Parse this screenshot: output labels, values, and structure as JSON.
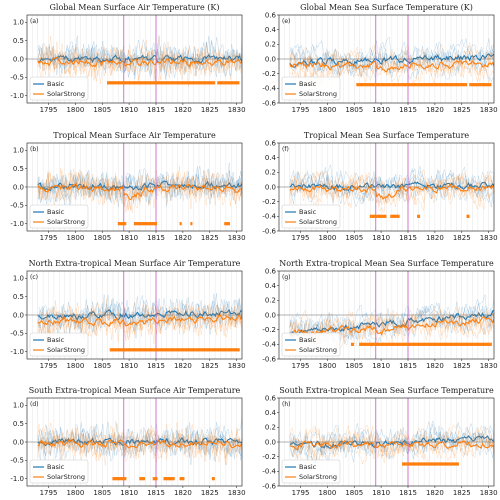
{
  "figure": {
    "colors": {
      "basic": "#1f77b4",
      "solar": "#ff7f0e",
      "event_line": "#cc66cc",
      "zero_line": "#666666",
      "frame": "#333333"
    }
  },
  "chart_data": [
    {
      "type": "line",
      "label": "(a)",
      "title": "Global Mean Surface Air Temperature (K)",
      "xlim": [
        1791,
        1831
      ],
      "ylim": [
        -1.2,
        1.2
      ],
      "yticks": [
        "1.0",
        "0.5",
        "0.0",
        "-0.5",
        "-1.0"
      ],
      "ytick_values": [
        1.0,
        0.5,
        0.0,
        -0.5,
        -1.0
      ],
      "xticks": [
        "1795",
        "1800",
        "1805",
        "1810",
        "1815",
        "1820",
        "1825",
        "1830"
      ],
      "xtick_values": [
        1795,
        1800,
        1805,
        1810,
        1815,
        1820,
        1825,
        1830
      ],
      "event_lines": [
        1809,
        1815
      ],
      "series": [
        {
          "name": "Basic",
          "color": "#1f77b4",
          "mean_start": 0.0,
          "mean_end": 0.0
        },
        {
          "name": "SolarStrong",
          "color": "#ff7f0e",
          "mean_start": -0.08,
          "mean_end": -0.08,
          "dip_at": 1809,
          "dip": -0.06
        }
      ],
      "legend": [
        "Basic",
        "SolarStrong"
      ],
      "legend_loc": "lower-left",
      "significance": {
        "y": -0.65,
        "spans": [
          [
            1806,
            1826
          ],
          [
            1826.5,
            1830.5
          ]
        ]
      }
    },
    {
      "type": "line",
      "label": "(e)",
      "title": "Global Mean Sea Surface Temperature (K)",
      "xlim": [
        1791,
        1831
      ],
      "ylim": [
        -0.6,
        0.6
      ],
      "yticks": [
        "0.6",
        "0.4",
        "0.2",
        "0.0",
        "-0.2",
        "-0.4",
        "-0.6"
      ],
      "ytick_values": [
        0.6,
        0.4,
        0.2,
        0.0,
        -0.2,
        -0.4,
        -0.6
      ],
      "xticks": [
        "1795",
        "1800",
        "1805",
        "1810",
        "1815",
        "1820",
        "1825",
        "1830"
      ],
      "xtick_values": [
        1795,
        1800,
        1805,
        1810,
        1815,
        1820,
        1825,
        1830
      ],
      "event_lines": [
        1809,
        1815
      ],
      "series": [
        {
          "name": "Basic",
          "color": "#1f77b4",
          "mean_start": -0.05,
          "mean_end": 0.03
        },
        {
          "name": "SolarStrong",
          "color": "#ff7f0e",
          "mean_start": -0.1,
          "mean_end": -0.07,
          "dip_at": 1809,
          "dip": -0.04
        }
      ],
      "legend": [
        "Basic",
        "SolarStrong"
      ],
      "legend_loc": "lower-left",
      "significance": {
        "y": -0.35,
        "spans": [
          [
            1805.5,
            1826
          ],
          [
            1826.5,
            1830.5
          ]
        ]
      }
    },
    {
      "type": "line",
      "label": "(b)",
      "title": "Tropical Mean Surface Air Temperature",
      "xlim": [
        1791,
        1831
      ],
      "ylim": [
        -1.2,
        1.2
      ],
      "yticks": [
        "1.0",
        "0.5",
        "0.0",
        "-0.5",
        "-1.0"
      ],
      "ytick_values": [
        1.0,
        0.5,
        0.0,
        -0.5,
        -1.0
      ],
      "xticks": [
        "1795",
        "1800",
        "1805",
        "1810",
        "1815",
        "1820",
        "1825",
        "1830"
      ],
      "xtick_values": [
        1795,
        1800,
        1805,
        1810,
        1815,
        1820,
        1825,
        1830
      ],
      "event_lines": [
        1809,
        1815
      ],
      "series": [
        {
          "name": "Basic",
          "color": "#1f77b4",
          "mean_start": 0.0,
          "mean_end": 0.05
        },
        {
          "name": "SolarStrong",
          "color": "#ff7f0e",
          "mean_start": -0.02,
          "mean_end": -0.05,
          "dip_at": 1809,
          "dip": -0.2
        }
      ],
      "legend": [
        "Basic",
        "SolarStrong"
      ],
      "legend_loc": "lower-left",
      "significance": {
        "y": -1.0,
        "spans": [
          [
            1808,
            1809.5
          ],
          [
            1811,
            1815.2
          ],
          [
            1819.5,
            1819.8
          ],
          [
            1821.5,
            1821.8
          ],
          [
            1827.8,
            1828.8
          ]
        ]
      }
    },
    {
      "type": "line",
      "label": "(f)",
      "title": "Tropical Mean Sea Surface Temperature",
      "xlim": [
        1791,
        1831
      ],
      "ylim": [
        -0.6,
        0.6
      ],
      "yticks": [
        "0.6",
        "0.4",
        "0.2",
        "0.0",
        "-0.2",
        "-0.4",
        "-0.6"
      ],
      "ytick_values": [
        0.6,
        0.4,
        0.2,
        0.0,
        -0.2,
        -0.4,
        -0.6
      ],
      "xticks": [
        "1795",
        "1800",
        "1805",
        "1810",
        "1815",
        "1820",
        "1825",
        "1830"
      ],
      "xtick_values": [
        1795,
        1800,
        1805,
        1810,
        1815,
        1820,
        1825,
        1830
      ],
      "event_lines": [
        1809,
        1815
      ],
      "series": [
        {
          "name": "Basic",
          "color": "#1f77b4",
          "mean_start": 0.0,
          "mean_end": 0.02
        },
        {
          "name": "SolarStrong",
          "color": "#ff7f0e",
          "mean_start": -0.02,
          "mean_end": -0.02,
          "dip_at": 1809,
          "dip": -0.12
        }
      ],
      "legend": [
        "Basic",
        "SolarStrong"
      ],
      "legend_loc": "lower-left",
      "significance": {
        "y": -0.4,
        "spans": [
          [
            1808,
            1811
          ],
          [
            1811.8,
            1813.5
          ],
          [
            1816.8,
            1817.2
          ],
          [
            1826,
            1826.5
          ]
        ]
      }
    },
    {
      "type": "line",
      "label": "(c)",
      "title": "North Extra-tropical Mean Surface Air Temperature",
      "xlim": [
        1791,
        1831
      ],
      "ylim": [
        -1.2,
        1.2
      ],
      "yticks": [
        "1.0",
        "0.5",
        "0.0",
        "-0.5",
        "-1.0"
      ],
      "ytick_values": [
        1.0,
        0.5,
        0.0,
        -0.5,
        -1.0
      ],
      "xticks": [
        "1795",
        "1800",
        "1805",
        "1810",
        "1815",
        "1820",
        "1825",
        "1830"
      ],
      "xtick_values": [
        1795,
        1800,
        1805,
        1810,
        1815,
        1820,
        1825,
        1830
      ],
      "event_lines": [
        1809,
        1815
      ],
      "series": [
        {
          "name": "Basic",
          "color": "#1f77b4",
          "mean_start": -0.05,
          "mean_end": 0.08
        },
        {
          "name": "SolarStrong",
          "color": "#ff7f0e",
          "mean_start": -0.2,
          "mean_end": -0.1,
          "dip_at": 1809,
          "dip": -0.1
        }
      ],
      "legend": [
        "Basic",
        "SolarStrong"
      ],
      "legend_loc": "lower-left",
      "significance": {
        "y": -0.95,
        "spans": [
          [
            1806.5,
            1830.5
          ]
        ]
      }
    },
    {
      "type": "line",
      "label": "(g)",
      "title": "North Extra-tropical Mean Sea Surface Temperature",
      "xlim": [
        1791,
        1831
      ],
      "ylim": [
        -0.6,
        0.6
      ],
      "yticks": [
        "0.6",
        "0.4",
        "0.2",
        "0.0",
        "-0.2",
        "-0.4",
        "-0.6"
      ],
      "ytick_values": [
        0.6,
        0.4,
        0.2,
        0.0,
        -0.2,
        -0.4,
        -0.6
      ],
      "xticks": [
        "1795",
        "1800",
        "1805",
        "1810",
        "1815",
        "1820",
        "1825",
        "1830"
      ],
      "xtick_values": [
        1795,
        1800,
        1805,
        1810,
        1815,
        1820,
        1825,
        1830
      ],
      "event_lines": [
        1809,
        1815
      ],
      "series": [
        {
          "name": "Basic",
          "color": "#1f77b4",
          "mean_start": -0.25,
          "mean_end": 0.03
        },
        {
          "name": "SolarStrong",
          "color": "#ff7f0e",
          "mean_start": -0.25,
          "mean_end": -0.07,
          "dip_at": 1809,
          "dip": -0.05
        }
      ],
      "legend": [
        "Basic",
        "SolarStrong"
      ],
      "legend_loc": "lower-left",
      "significance": {
        "y": -0.4,
        "spans": [
          [
            1804.5,
            1805
          ],
          [
            1806,
            1830.5
          ]
        ]
      }
    },
    {
      "type": "line",
      "label": "(d)",
      "title": "South Extra-tropical Mean Surface Air Temperature",
      "xlim": [
        1791,
        1831
      ],
      "ylim": [
        -1.2,
        1.2
      ],
      "yticks": [
        "1.0",
        "0.5",
        "0.0",
        "-0.5",
        "-1.0"
      ],
      "ytick_values": [
        1.0,
        0.5,
        0.0,
        -0.5,
        -1.0
      ],
      "xticks": [
        "1795",
        "1800",
        "1805",
        "1810",
        "1815",
        "1820",
        "1825",
        "1830"
      ],
      "xtick_values": [
        1795,
        1800,
        1805,
        1810,
        1815,
        1820,
        1825,
        1830
      ],
      "event_lines": [
        1809,
        1815
      ],
      "series": [
        {
          "name": "Basic",
          "color": "#1f77b4",
          "mean_start": 0.0,
          "mean_end": 0.02
        },
        {
          "name": "SolarStrong",
          "color": "#ff7f0e",
          "mean_start": -0.03,
          "mean_end": -0.05,
          "dip_at": 1809,
          "dip": -0.06
        }
      ],
      "legend": [
        "Basic",
        "SolarStrong"
      ],
      "legend_loc": "lower-left",
      "significance": {
        "y": -1.0,
        "spans": [
          [
            1807,
            1809.5
          ],
          [
            1812,
            1813
          ],
          [
            1814.5,
            1815.2
          ],
          [
            1816.5,
            1818.5
          ],
          [
            1819.5,
            1820.2
          ],
          [
            1825.5,
            1826
          ]
        ]
      }
    },
    {
      "type": "line",
      "label": "(h)",
      "title": "South Extra-tropical Mean Sea Surface Temperature",
      "xlim": [
        1791,
        1831
      ],
      "ylim": [
        -0.6,
        0.6
      ],
      "yticks": [
        "0.6",
        "0.4",
        "0.2",
        "0.0",
        "-0.2",
        "-0.4",
        "-0.6"
      ],
      "ytick_values": [
        0.6,
        0.4,
        0.2,
        0.0,
        -0.2,
        -0.4,
        -0.6
      ],
      "xticks": [
        "1795",
        "1800",
        "1805",
        "1810",
        "1815",
        "1820",
        "1825",
        "1830"
      ],
      "xtick_values": [
        1795,
        1800,
        1805,
        1810,
        1815,
        1820,
        1825,
        1830
      ],
      "event_lines": [
        1809,
        1815
      ],
      "series": [
        {
          "name": "Basic",
          "color": "#1f77b4",
          "mean_start": -0.05,
          "mean_end": 0.05
        },
        {
          "name": "SolarStrong",
          "color": "#ff7f0e",
          "mean_start": -0.05,
          "mean_end": -0.02,
          "dip_at": 1809,
          "dip": -0.03
        }
      ],
      "legend": [
        "Basic",
        "SolarStrong"
      ],
      "legend_loc": "lower-left",
      "significance": {
        "y": -0.3,
        "spans": [
          [
            1814,
            1824.5
          ]
        ]
      }
    }
  ]
}
